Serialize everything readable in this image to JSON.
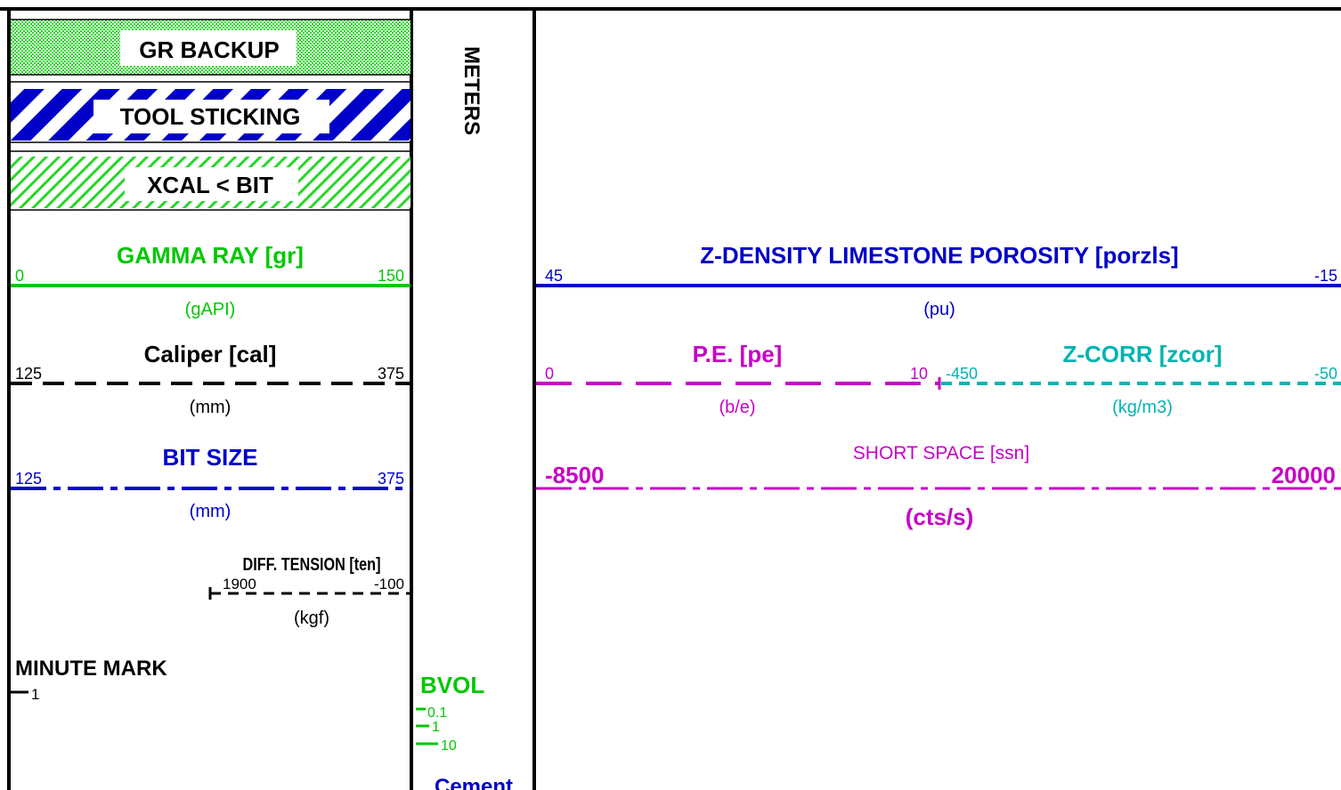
{
  "colors": {
    "black": "#000000",
    "green": "#00c800",
    "blue": "#0000c8",
    "magenta": "#c800c8",
    "cyan": "#00b4b4",
    "hatch_green": "#28d728"
  },
  "flags": {
    "gr_backup": "GR BACKUP",
    "tool_sticking": "TOOL STICKING",
    "xcal_bit": "XCAL < BIT"
  },
  "depth_track": {
    "label": "METERS",
    "bvol": {
      "title": "BVOL",
      "scale_a": "0.1",
      "scale_b": "1",
      "scale_c": "10"
    },
    "cement": "Cement"
  },
  "track1": {
    "gamma_ray": {
      "title": "GAMMA RAY  [gr]",
      "left": "0",
      "right": "150",
      "unit": "(gAPI)"
    },
    "caliper": {
      "title": "Caliper  [cal]",
      "left": "125",
      "right": "375",
      "unit": "(mm)"
    },
    "bit_size": {
      "title": "BIT SIZE",
      "left": "125",
      "right": "375",
      "unit": "(mm)"
    },
    "diff_tension": {
      "title": "DIFF. TENSION [ten]",
      "left": "1900",
      "right": "-100",
      "unit": "(kgf)"
    },
    "minute_mark": {
      "title": "MINUTE MARK",
      "scale": "1"
    }
  },
  "track2": {
    "porosity": {
      "title": "Z-DENSITY LIMESTONE POROSITY  [porzls]",
      "left": "45",
      "right": "-15",
      "unit": "(pu)"
    },
    "pe": {
      "title": "P.E.  [pe]",
      "left": "0",
      "right": "10",
      "unit": "(b/e)"
    },
    "zcorr": {
      "title": "Z-CORR  [zcor]",
      "left": "-450",
      "right": "-50",
      "unit": "(kg/m3)"
    },
    "short_space": {
      "title": "SHORT SPACE [ssn]",
      "left": "-8500",
      "right": "20000",
      "unit": "(cts/s)"
    }
  }
}
